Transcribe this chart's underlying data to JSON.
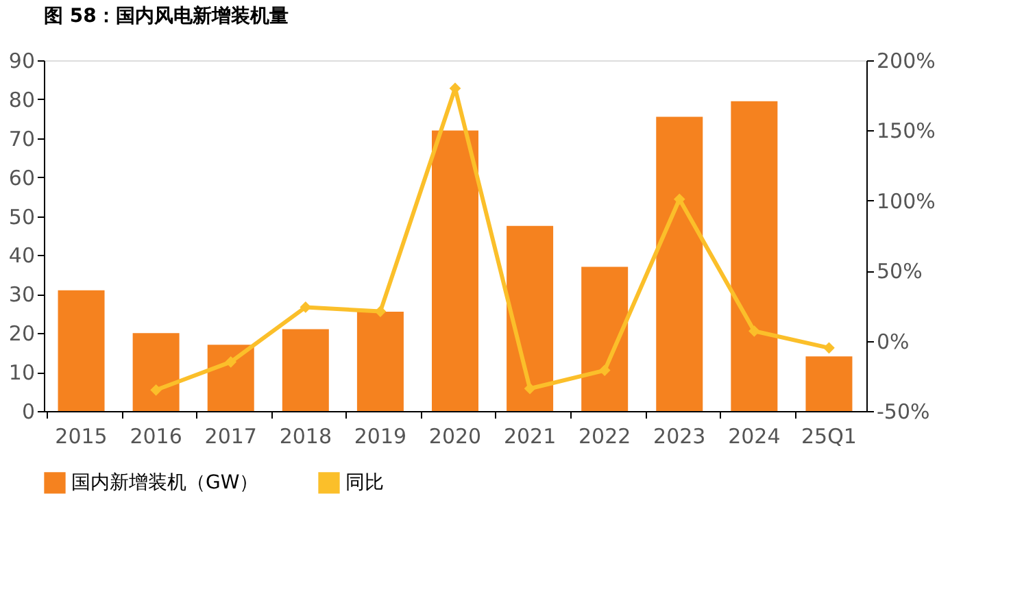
{
  "chart_data": {
    "type": "bar",
    "title": "图 58：国内风电新增装机量",
    "categories": [
      "2015",
      "2016",
      "2017",
      "2018",
      "2019",
      "2020",
      "2021",
      "2022",
      "2023",
      "2024",
      "25Q1"
    ],
    "series": [
      {
        "name": "国内新增装机（GW）",
        "color": "#f5821f",
        "values": [
          31,
          20,
          17,
          21,
          25.5,
          72,
          47.5,
          37,
          75.5,
          79.5,
          14
        ]
      },
      {
        "name": "同比",
        "type": "line",
        "axis": "y2",
        "color": "#fbbf2a",
        "values": [
          null,
          -35,
          -15,
          24,
          21,
          180,
          -34,
          -21,
          101,
          7,
          -5
        ]
      }
    ],
    "ylim": [
      0,
      90
    ],
    "yticks": [
      0,
      10,
      20,
      30,
      40,
      50,
      60,
      70,
      80,
      90
    ],
    "y2lim": [
      -50,
      200
    ],
    "y2ticks": [
      {
        "value": -50,
        "label": "-50%"
      },
      {
        "value": 0,
        "label": "0%"
      },
      {
        "value": 50,
        "label": "50%"
      },
      {
        "value": 100,
        "label": "100%"
      },
      {
        "value": 150,
        "label": "150%"
      },
      {
        "value": 200,
        "label": "200%"
      }
    ],
    "marker": "diamond",
    "line_style": "solid",
    "legend": "bottom",
    "grid": false
  }
}
